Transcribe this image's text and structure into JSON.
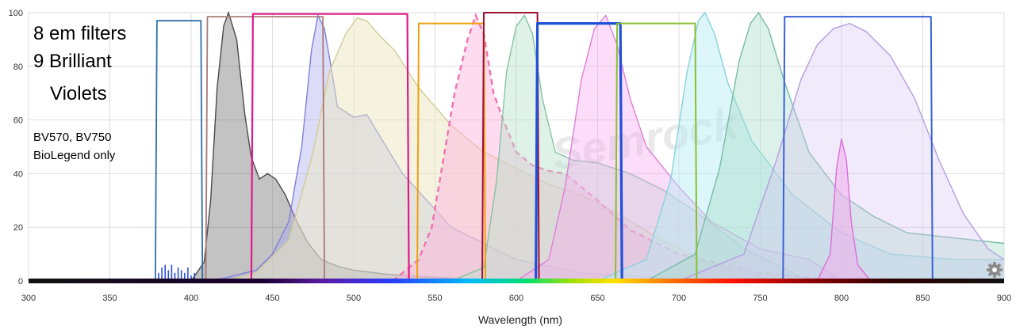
{
  "chart_data": {
    "type": "area",
    "xlabel": "Wavelength (nm)",
    "ylabel": "",
    "xlim": [
      300,
      900
    ],
    "ylim": [
      0,
      100
    ],
    "x_ticks": [
      300,
      350,
      400,
      450,
      500,
      550,
      600,
      650,
      700,
      750,
      800,
      850,
      900
    ],
    "y_ticks": [
      0,
      20,
      40,
      60,
      80,
      100
    ],
    "grid": true,
    "annotations": {
      "title_line1": "8 em filters",
      "title_line2": "9 Brilliant",
      "title_line3": "Violets",
      "note_line1": "BV570, BV750",
      "note_line2": "BioLegend only"
    },
    "filters": [
      {
        "range": [
          379,
          406
        ],
        "top": 97,
        "color": "#2f6fa8",
        "width": 1.8
      },
      {
        "range": [
          410,
          481
        ],
        "top": 98.5,
        "color": "#a87a78",
        "width": 1.8
      },
      {
        "range": [
          438,
          533
        ],
        "top": 99.5,
        "color": "#e0188a",
        "width": 2.2
      },
      {
        "range": [
          540,
          580
        ],
        "top": 96,
        "color": "#f0a010",
        "width": 2.0
      },
      {
        "range": [
          580,
          613
        ],
        "top": 100,
        "color": "#a01030",
        "width": 2.0
      },
      {
        "range": [
          613,
          664
        ],
        "top": 96,
        "color": "#2050d8",
        "width": 3.2
      },
      {
        "range": [
          662,
          710
        ],
        "top": 96,
        "color": "#88c030",
        "width": 2.0
      },
      {
        "range": [
          765,
          855
        ],
        "top": 98.5,
        "color": "#3a60d8",
        "width": 2.0
      }
    ],
    "series": [
      {
        "fill": "#7a7a7a",
        "stroke": "#4a4a4a",
        "opacity": 0.45,
        "x": [
          400,
          408,
          412,
          416,
          420,
          423,
          428,
          433,
          437,
          442,
          447,
          452,
          458,
          465,
          472,
          480,
          490,
          500,
          520,
          545,
          570,
          600,
          630
        ],
        "y": [
          0,
          7,
          30,
          72,
          95,
          100,
          90,
          62,
          46,
          38,
          40,
          38,
          32,
          22,
          14,
          8,
          5.5,
          4,
          2.5,
          1.5,
          0.8,
          0.3,
          0
        ]
      },
      {
        "fill": "#a8a8ee",
        "stroke": "#8080d8",
        "opacity": 0.4,
        "x": [
          408,
          420,
          440,
          450,
          460,
          468,
          474,
          478,
          482,
          486,
          490,
          500,
          508,
          515,
          530,
          560,
          600,
          640,
          680,
          720,
          760
        ],
        "y": [
          0,
          1,
          4,
          10,
          22,
          50,
          86,
          99,
          94,
          80,
          65,
          61,
          62,
          55,
          40,
          20,
          8,
          3,
          1.5,
          0.5,
          0
        ]
      },
      {
        "fill": "#ece8c2",
        "stroke": "#d2cc96",
        "opacity": 0.5,
        "x": [
          420,
          440,
          460,
          475,
          485,
          495,
          502,
          508,
          515,
          525,
          540,
          560,
          580,
          600,
          620,
          640,
          660,
          690,
          720,
          760
        ],
        "y": [
          0,
          3,
          15,
          48,
          78,
          92,
          98,
          97,
          92,
          86,
          72,
          58,
          48,
          42,
          36,
          32,
          26,
          15,
          6,
          0
        ]
      },
      {
        "fill": "#ffb0dc",
        "stroke": "#f070b0",
        "opacity": 0.45,
        "dashed": true,
        "x": [
          430,
          500,
          525,
          540,
          548,
          555,
          562,
          570,
          575,
          580,
          586,
          592,
          600,
          610,
          620,
          630,
          650,
          670,
          700,
          750,
          800
        ],
        "y": [
          0,
          0,
          0.5,
          8,
          20,
          45,
          70,
          90,
          99,
          92,
          70,
          60,
          48,
          43,
          41,
          40,
          30,
          19,
          10,
          3,
          0
        ]
      },
      {
        "fill": "#b8e2cc",
        "stroke": "#86c2a2",
        "opacity": 0.45,
        "x": [
          560,
          580,
          588,
          594,
          600,
          605,
          610,
          616,
          624,
          635,
          650,
          670,
          690,
          710,
          740,
          780
        ],
        "y": [
          0,
          5,
          38,
          78,
          95,
          99,
          92,
          68,
          48,
          45,
          44,
          40,
          34,
          26,
          12,
          0
        ]
      },
      {
        "fill": "#f4aaf0",
        "stroke": "#dc80d8",
        "opacity": 0.4,
        "x": [
          600,
          620,
          630,
          640,
          648,
          655,
          662,
          670,
          680,
          700,
          720,
          750,
          780,
          800
        ],
        "y": [
          0,
          8,
          35,
          75,
          94,
          99,
          88,
          68,
          50,
          35,
          22,
          12,
          8,
          0
        ]
      },
      {
        "fill": "#b4ecf2",
        "stroke": "#88d2dc",
        "opacity": 0.45,
        "x": [
          650,
          680,
          695,
          705,
          712,
          716,
          722,
          730,
          745,
          770,
          800,
          830,
          870,
          900
        ],
        "y": [
          0,
          8,
          38,
          78,
          97,
          100,
          92,
          74,
          52,
          32,
          18,
          10,
          8,
          8
        ]
      },
      {
        "fill": "#a6dcc8",
        "stroke": "#78bca6",
        "opacity": 0.4,
        "x": [
          680,
          710,
          725,
          737,
          744,
          749,
          755,
          765,
          780,
          800,
          820,
          840,
          870,
          900
        ],
        "y": [
          0,
          10,
          42,
          82,
          96,
          100,
          94,
          74,
          48,
          32,
          24,
          18,
          16,
          14
        ]
      },
      {
        "fill": "#d8c4f2",
        "stroke": "#b49ee2",
        "opacity": 0.35,
        "x": [
          700,
          740,
          760,
          775,
          785,
          795,
          805,
          815,
          830,
          845,
          860,
          875,
          890,
          900
        ],
        "y": [
          0,
          10,
          45,
          75,
          88,
          94,
          96,
          93,
          84,
          68,
          45,
          25,
          12,
          8
        ]
      },
      {
        "fill": "#f4a8ee",
        "stroke": "#dc6edc",
        "opacity": 0.5,
        "x": [
          785,
          793,
          797,
          800,
          803,
          806,
          810,
          818
        ],
        "y": [
          0,
          10,
          42,
          53,
          45,
          22,
          6,
          0
        ]
      }
    ],
    "uv_excitation_bars": {
      "x": [
        380,
        382,
        384,
        386,
        388,
        390,
        392,
        394,
        396,
        398,
        400,
        402
      ],
      "y": [
        3,
        5,
        6,
        4,
        6,
        3,
        5,
        4,
        3,
        5,
        2,
        3
      ],
      "color": "#2a50e0"
    }
  },
  "watermark": "Semrock",
  "settings_icon": "gear-icon"
}
